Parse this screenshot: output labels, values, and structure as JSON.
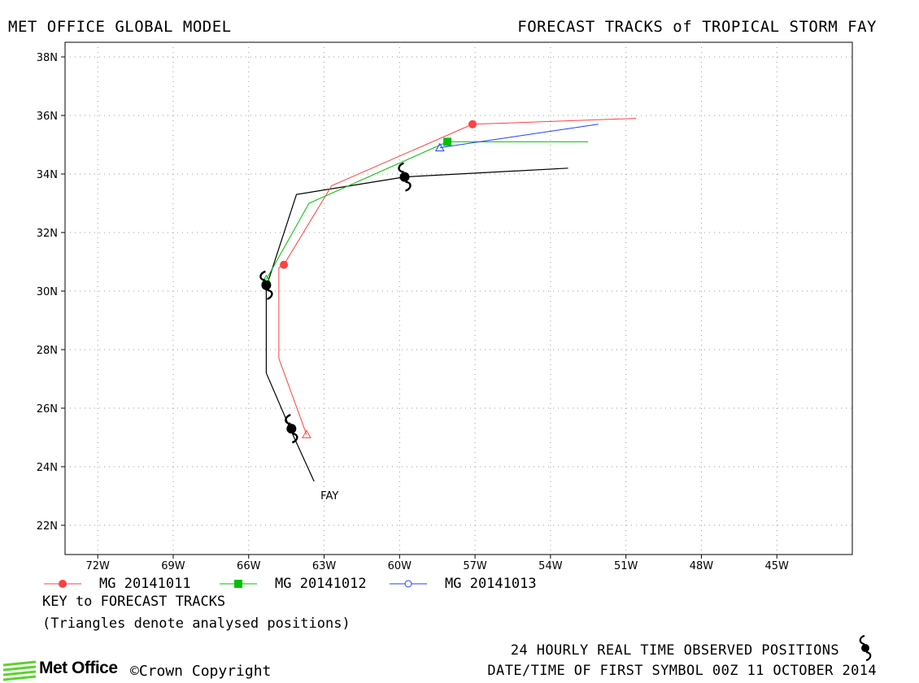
{
  "header": {
    "left": "MET OFFICE GLOBAL MODEL",
    "right": "FORECAST TRACKS of TROPICAL STORM FAY"
  },
  "legend": [
    {
      "label": "MG 20141011",
      "color": "#ff4040",
      "marker": "circle"
    },
    {
      "label": "MG 20141012",
      "color": "#00c000",
      "marker": "square"
    },
    {
      "label": "MG 20141013",
      "color": "#2040ff",
      "marker": "open-circle"
    }
  ],
  "key": {
    "title": "KEY to FORECAST TRACKS",
    "note": "(Triangles denote analysed positions)"
  },
  "footer": {
    "observed": "24 HOURLY REAL TIME OBSERVED POSITIONS",
    "first_symbol": "DATE/TIME OF FIRST SYMBOL 00Z 11 OCTOBER 2014",
    "brand": "Met Office",
    "copyright": "©Crown Copyright"
  },
  "chart_data": {
    "type": "line",
    "title": "FORECAST TRACKS of TROPICAL STORM FAY",
    "xlim": [
      -73.3,
      -42.0
    ],
    "ylim": [
      21.0,
      38.5
    ],
    "x_ticks": [
      -72,
      -69,
      -66,
      -63,
      -60,
      -57,
      -54,
      -51,
      -48,
      -45
    ],
    "x_tick_labels": [
      "72W",
      "69W",
      "66W",
      "63W",
      "60W",
      "57W",
      "54W",
      "51W",
      "48W",
      "45W"
    ],
    "y_ticks": [
      22,
      24,
      26,
      28,
      30,
      32,
      34,
      36,
      38
    ],
    "y_tick_labels": [
      "22N",
      "24N",
      "26N",
      "28N",
      "30N",
      "32N",
      "34N",
      "36N",
      "38N"
    ],
    "grid": true,
    "storm_label": "FAY",
    "observed_track": {
      "name": "FAY",
      "color": "#000000",
      "lon": [
        -63.4,
        -64.3,
        -65.3,
        -65.3,
        -65.2,
        -64.1,
        -59.8,
        -53.3
      ],
      "lat": [
        23.5,
        25.2,
        27.2,
        30.2,
        30.4,
        33.3,
        33.9,
        34.2
      ],
      "observed_positions": [
        {
          "lon": -64.3,
          "lat": 25.3
        },
        {
          "lon": -65.3,
          "lat": 30.2
        },
        {
          "lon": -59.8,
          "lat": 33.9
        }
      ]
    },
    "series": [
      {
        "name": "MG 20141011",
        "color": "#ff4040",
        "lon": [
          -63.7,
          -64.8,
          -64.8,
          -64.6,
          -62.7,
          -57.1,
          -50.6
        ],
        "lat": [
          25.1,
          27.7,
          30.8,
          30.9,
          33.6,
          35.7,
          35.9
        ],
        "analysed": {
          "lon": -63.7,
          "lat": 25.1
        },
        "markers": [
          {
            "lon": -64.6,
            "lat": 30.9
          },
          {
            "lon": -57.1,
            "lat": 35.7
          }
        ]
      },
      {
        "name": "MG 20141012",
        "color": "#00c000",
        "lon": [
          -65.3,
          -63.6,
          -58.1,
          -52.5
        ],
        "lat": [
          30.4,
          33.0,
          35.1,
          35.1
        ],
        "analysed": {
          "lon": -65.3,
          "lat": 30.4
        },
        "markers": [
          {
            "lon": -58.1,
            "lat": 35.1
          }
        ]
      },
      {
        "name": "MG 20141013",
        "color": "#2040ff",
        "lon": [
          -58.4,
          -52.1
        ],
        "lat": [
          34.9,
          35.7
        ],
        "analysed": {
          "lon": -58.4,
          "lat": 34.9
        },
        "markers": []
      }
    ]
  }
}
